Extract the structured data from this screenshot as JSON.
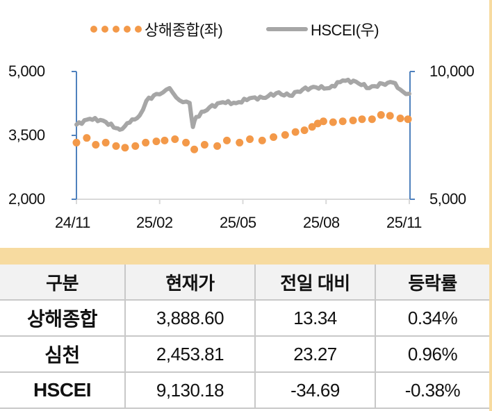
{
  "legend": {
    "series1_label": "상해종합(좌)",
    "series2_label": "HSCEI(우)"
  },
  "axes": {
    "left_ticks": [
      "5,000",
      "3,500",
      "2,000"
    ],
    "right_ticks": [
      "10,000",
      "5,000"
    ],
    "x_ticks": [
      "24/11",
      "25/02",
      "25/05",
      "25/08",
      "25/11"
    ]
  },
  "colors": {
    "sse": "#f39949",
    "hscei": "#a6a6a6",
    "axis": "#4f81bd",
    "band": "#f7dba0",
    "header_bg": "#f2f2f2"
  },
  "table": {
    "headers": [
      "구분",
      "현재가",
      "전일 대비",
      "등락률"
    ],
    "rows": [
      {
        "name": "상해종합",
        "price": "3,888.60",
        "change": "13.34",
        "pct": "0.34%"
      },
      {
        "name": "심천",
        "price": "2,453.81",
        "change": "23.27",
        "pct": "0.96%"
      },
      {
        "name": "HSCEI",
        "price": "9,130.18",
        "change": "-34.69",
        "pct": "-0.38%"
      }
    ]
  },
  "chart_data": {
    "type": "line",
    "title": "",
    "xlabel": "",
    "ylabel": "",
    "x_ticks": [
      "24/11",
      "25/02",
      "25/05",
      "25/08",
      "25/11"
    ],
    "left_axis": {
      "range": [
        2000,
        5000
      ],
      "ticks": [
        2000,
        3500,
        5000
      ]
    },
    "right_axis": {
      "range": [
        5000,
        10000
      ],
      "ticks": [
        5000,
        10000
      ]
    },
    "legend_position": "top",
    "grid": false,
    "series": [
      {
        "name": "상해종합(좌)",
        "axis": "left",
        "style": "dotted",
        "x_frac": [
          0.0,
          0.031,
          0.058,
          0.088,
          0.119,
          0.146,
          0.177,
          0.208,
          0.24,
          0.265,
          0.296,
          0.329,
          0.354,
          0.385,
          0.423,
          0.452,
          0.49,
          0.521,
          0.558,
          0.592,
          0.627,
          0.658,
          0.685,
          0.708,
          0.725,
          0.742,
          0.771,
          0.8,
          0.831,
          0.858,
          0.888,
          0.915,
          0.942,
          0.973,
          0.996
        ],
        "values": [
          3330,
          3440,
          3280,
          3330,
          3250,
          3210,
          3250,
          3330,
          3360,
          3380,
          3410,
          3330,
          3170,
          3280,
          3250,
          3380,
          3330,
          3410,
          3380,
          3460,
          3510,
          3580,
          3620,
          3700,
          3780,
          3830,
          3810,
          3830,
          3850,
          3880,
          3880,
          3980,
          3960,
          3900,
          3880
        ]
      },
      {
        "name": "HSCEI(우)",
        "axis": "right",
        "style": "line",
        "x_frac": [
          0.0,
          0.04,
          0.08,
          0.12,
          0.13,
          0.16,
          0.19,
          0.21,
          0.24,
          0.26,
          0.28,
          0.3,
          0.32,
          0.34,
          0.35,
          0.36,
          0.4,
          0.44,
          0.48,
          0.52,
          0.56,
          0.6,
          0.64,
          0.68,
          0.72,
          0.76,
          0.8,
          0.84,
          0.88,
          0.92,
          0.95,
          0.98,
          1.0
        ],
        "values": [
          7920,
          8150,
          8080,
          7780,
          7720,
          8000,
          8280,
          8850,
          9120,
          9180,
          9350,
          8980,
          8800,
          8770,
          7830,
          8220,
          8600,
          8800,
          8760,
          8950,
          8970,
          9150,
          9060,
          9300,
          9380,
          9350,
          9650,
          9600,
          9350,
          9520,
          9570,
          9220,
          9130
        ]
      }
    ]
  }
}
